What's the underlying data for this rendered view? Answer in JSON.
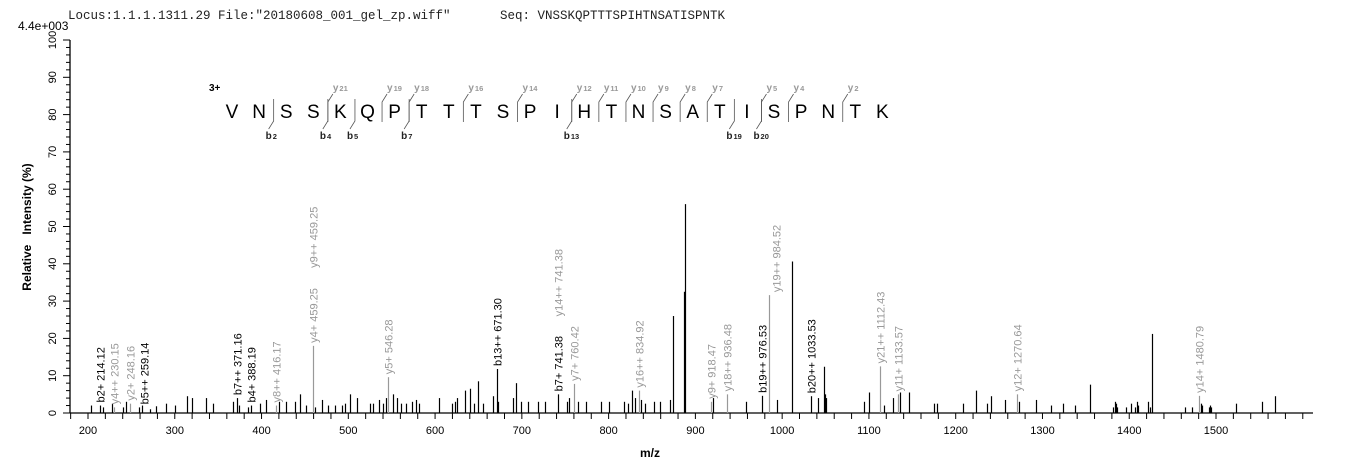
{
  "header": {
    "locus": "Locus:1.1.1.1311.29 File:\"20180608_001_gel_zp.wiff\"",
    "seq": "Seq: VNSSKQPTTTSPIHTNSATISPNTK",
    "scale_max": "4.4e+003"
  },
  "colors": {
    "b_ion": "#000000",
    "y_ion": "#999999",
    "unmatched": "#000000"
  },
  "sequence_annotation": {
    "charge": "3+",
    "residues": [
      "V",
      "N",
      "S",
      "S",
      "K",
      "Q",
      "P",
      "T",
      "T",
      "T",
      "S",
      "P",
      "I",
      "H",
      "T",
      "N",
      "S",
      "A",
      "T",
      "I",
      "S",
      "P",
      "N",
      "T",
      "K"
    ],
    "y_ions": [
      21,
      19,
      18,
      16,
      14,
      12,
      11,
      10,
      9,
      8,
      7,
      5,
      4,
      2
    ],
    "b_ions": [
      2,
      4,
      5,
      7,
      13,
      19,
      20
    ],
    "y_prefix": "y",
    "b_prefix": "b"
  },
  "chart_data": {
    "type": "bar",
    "title": "",
    "xlabel": "m/z",
    "ylabel": "Relative   Intensity (%)",
    "xlim": [
      179,
      1612
    ],
    "ylim": [
      0,
      100
    ],
    "x_ticks": [
      "200",
      "300",
      "400",
      "500",
      "600",
      "700",
      "800",
      "900",
      "1000",
      "1100",
      "1200",
      "1300",
      "1400",
      "1500"
    ],
    "y_ticks": [
      "0",
      "10",
      "20",
      "30",
      "40",
      "50",
      "60",
      "70",
      "80",
      "90",
      "100"
    ],
    "grid": false,
    "peaks": [
      {
        "mz": 203,
        "intensity": 2
      },
      {
        "mz": 214.12,
        "intensity": 2,
        "labels": [
          {
            "text": "b2+ 214.12",
            "ion": "b"
          }
        ]
      },
      {
        "mz": 217,
        "intensity": 1.5
      },
      {
        "mz": 228,
        "intensity": 2.5
      },
      {
        "mz": 230.15,
        "intensity": 1.5,
        "labels": [
          {
            "text": "y4++ 230.15",
            "ion": "y"
          }
        ]
      },
      {
        "mz": 240,
        "intensity": 1.5
      },
      {
        "mz": 244,
        "intensity": 3
      },
      {
        "mz": 248.16,
        "intensity": 2.5,
        "labels": [
          {
            "text": "y2+ 248.16",
            "ion": "y"
          }
        ]
      },
      {
        "mz": 259.14,
        "intensity": 1.5,
        "labels": [
          {
            "text": "b5++ 259.14",
            "ion": "b"
          }
        ]
      },
      {
        "mz": 262,
        "intensity": 2
      },
      {
        "mz": 272,
        "intensity": 1
      },
      {
        "mz": 278,
        "intensity": 1.8
      },
      {
        "mz": 290,
        "intensity": 2.5
      },
      {
        "mz": 300,
        "intensity": 2
      },
      {
        "mz": 314,
        "intensity": 4.5
      },
      {
        "mz": 320,
        "intensity": 4
      },
      {
        "mz": 336,
        "intensity": 4
      },
      {
        "mz": 344,
        "intensity": 2.5
      },
      {
        "mz": 367,
        "intensity": 3
      },
      {
        "mz": 371.16,
        "intensity": 4,
        "labels": [
          {
            "text": "b7++ 371.16",
            "ion": "b"
          }
        ]
      },
      {
        "mz": 374,
        "intensity": 2
      },
      {
        "mz": 384,
        "intensity": 1.5
      },
      {
        "mz": 388.19,
        "intensity": 2,
        "labels": [
          {
            "text": "b4+ 388.19",
            "ion": "b"
          }
        ]
      },
      {
        "mz": 398,
        "intensity": 2.5
      },
      {
        "mz": 405,
        "intensity": 3.5
      },
      {
        "mz": 416.17,
        "intensity": 2,
        "labels": [
          {
            "text": "y8++ 416.17",
            "ion": "y"
          }
        ]
      },
      {
        "mz": 420,
        "intensity": 3
      },
      {
        "mz": 428,
        "intensity": 3
      },
      {
        "mz": 438,
        "intensity": 3
      },
      {
        "mz": 444,
        "intensity": 5
      },
      {
        "mz": 451,
        "intensity": 2
      },
      {
        "mz": 459.25,
        "intensity": 18,
        "labels": [
          {
            "text": "y4+ 459.25",
            "ion": "y"
          },
          {
            "text": "y9++ 459.25",
            "ion": "y"
          }
        ]
      },
      {
        "mz": 462,
        "intensity": 1.5
      },
      {
        "mz": 470,
        "intensity": 3.5
      },
      {
        "mz": 477,
        "intensity": 2
      },
      {
        "mz": 485,
        "intensity": 2
      },
      {
        "mz": 493,
        "intensity": 2
      },
      {
        "mz": 496,
        "intensity": 2.5
      },
      {
        "mz": 502,
        "intensity": 5
      },
      {
        "mz": 510,
        "intensity": 4
      },
      {
        "mz": 525,
        "intensity": 2.5
      },
      {
        "mz": 528,
        "intensity": 2.5
      },
      {
        "mz": 535,
        "intensity": 3.5
      },
      {
        "mz": 540,
        "intensity": 2.5
      },
      {
        "mz": 543,
        "intensity": 4
      },
      {
        "mz": 546.28,
        "intensity": 9.6,
        "labels": [
          {
            "text": "y5+ 546.28",
            "ion": "y"
          }
        ]
      },
      {
        "mz": 552,
        "intensity": 5
      },
      {
        "mz": 556,
        "intensity": 4
      },
      {
        "mz": 561,
        "intensity": 2.5
      },
      {
        "mz": 566,
        "intensity": 2.5
      },
      {
        "mz": 573,
        "intensity": 3
      },
      {
        "mz": 578,
        "intensity": 3.5
      },
      {
        "mz": 582,
        "intensity": 2.5
      },
      {
        "mz": 605,
        "intensity": 4
      },
      {
        "mz": 619,
        "intensity": 2.5
      },
      {
        "mz": 623,
        "intensity": 3
      },
      {
        "mz": 625,
        "intensity": 4
      },
      {
        "mz": 634,
        "intensity": 6
      },
      {
        "mz": 640,
        "intensity": 6.5
      },
      {
        "mz": 645,
        "intensity": 2.5
      },
      {
        "mz": 650,
        "intensity": 8.5
      },
      {
        "mz": 655,
        "intensity": 2.5
      },
      {
        "mz": 667,
        "intensity": 4.5
      },
      {
        "mz": 671.3,
        "intensity": 11.8,
        "labels": [
          {
            "text": "b13++ 671.30",
            "ion": "b"
          }
        ]
      },
      {
        "mz": 673,
        "intensity": 3
      },
      {
        "mz": 690,
        "intensity": 4
      },
      {
        "mz": 693,
        "intensity": 8
      },
      {
        "mz": 699,
        "intensity": 3
      },
      {
        "mz": 707,
        "intensity": 3
      },
      {
        "mz": 719,
        "intensity": 3
      },
      {
        "mz": 727,
        "intensity": 3
      },
      {
        "mz": 741.38,
        "intensity": 5,
        "labels": [
          {
            "text": "b7+ 741.38",
            "ion": "b"
          },
          {
            "text": "y14++ 741.38",
            "ion": "y"
          }
        ]
      },
      {
        "mz": 752,
        "intensity": 3
      },
      {
        "mz": 754,
        "intensity": 4
      },
      {
        "mz": 760.42,
        "intensity": 7.8,
        "labels": [
          {
            "text": "y7+ 760.42",
            "ion": "y"
          }
        ]
      },
      {
        "mz": 765,
        "intensity": 3
      },
      {
        "mz": 774,
        "intensity": 3
      },
      {
        "mz": 791,
        "intensity": 3
      },
      {
        "mz": 800,
        "intensity": 3
      },
      {
        "mz": 818,
        "intensity": 3
      },
      {
        "mz": 822,
        "intensity": 2.5
      },
      {
        "mz": 827,
        "intensity": 6
      },
      {
        "mz": 830,
        "intensity": 4
      },
      {
        "mz": 834.92,
        "intensity": 6,
        "labels": [
          {
            "text": "y16++ 834.92",
            "ion": "y"
          }
        ]
      },
      {
        "mz": 837,
        "intensity": 3.5
      },
      {
        "mz": 842,
        "intensity": 2.5
      },
      {
        "mz": 852,
        "intensity": 3
      },
      {
        "mz": 859,
        "intensity": 3
      },
      {
        "mz": 871,
        "intensity": 3.5
      },
      {
        "mz": 873.8,
        "intensity": 26
      },
      {
        "mz": 887,
        "intensity": 32.5
      },
      {
        "mz": 888.4,
        "intensity": 56
      },
      {
        "mz": 918.47,
        "intensity": 3,
        "labels": [
          {
            "text": "y9+ 918.47",
            "ion": "y"
          }
        ]
      },
      {
        "mz": 920,
        "intensity": 4
      },
      {
        "mz": 936.48,
        "intensity": 5,
        "labels": [
          {
            "text": "y18++ 936.48",
            "ion": "y"
          }
        ]
      },
      {
        "mz": 958,
        "intensity": 3
      },
      {
        "mz": 976.53,
        "intensity": 4.6,
        "labels": [
          {
            "text": "b19++ 976.53",
            "ion": "b"
          }
        ]
      },
      {
        "mz": 984.52,
        "intensity": 31.6,
        "labels": [
          {
            "text": "y19++ 984.52",
            "ion": "y"
          }
        ]
      },
      {
        "mz": 994,
        "intensity": 3.5
      },
      {
        "mz": 1011.7,
        "intensity": 40.6
      },
      {
        "mz": 1033.53,
        "intensity": 4.5,
        "labels": [
          {
            "text": "b20++ 1033.53",
            "ion": "b"
          }
        ]
      },
      {
        "mz": 1041,
        "intensity": 4
      },
      {
        "mz": 1048.6,
        "intensity": 12.4
      },
      {
        "mz": 1049.6,
        "intensity": 5
      },
      {
        "mz": 1050.5,
        "intensity": 4
      },
      {
        "mz": 1094,
        "intensity": 3
      },
      {
        "mz": 1099.7,
        "intensity": 5.5
      },
      {
        "mz": 1112.43,
        "intensity": 12.5,
        "labels": [
          {
            "text": "y21++ 1112.43",
            "ion": "y"
          }
        ]
      },
      {
        "mz": 1117,
        "intensity": 2
      },
      {
        "mz": 1127.7,
        "intensity": 4
      },
      {
        "mz": 1133.57,
        "intensity": 5,
        "labels": [
          {
            "text": "y11+ 1133.57",
            "ion": "y"
          }
        ]
      },
      {
        "mz": 1135.5,
        "intensity": 5.5
      },
      {
        "mz": 1146,
        "intensity": 5.5
      },
      {
        "mz": 1174.8,
        "intensity": 2.5
      },
      {
        "mz": 1178.6,
        "intensity": 2.5
      },
      {
        "mz": 1208,
        "intensity": 2.5
      },
      {
        "mz": 1223,
        "intensity": 6
      },
      {
        "mz": 1236,
        "intensity": 2.5
      },
      {
        "mz": 1240.5,
        "intensity": 4.5
      },
      {
        "mz": 1256.6,
        "intensity": 3.5
      },
      {
        "mz": 1270.64,
        "intensity": 5,
        "labels": [
          {
            "text": "y12+ 1270.64",
            "ion": "y"
          }
        ]
      },
      {
        "mz": 1273.5,
        "intensity": 3
      },
      {
        "mz": 1292,
        "intensity": 3.5
      },
      {
        "mz": 1310,
        "intensity": 2
      },
      {
        "mz": 1324,
        "intensity": 2.5
      },
      {
        "mz": 1337.5,
        "intensity": 2
      },
      {
        "mz": 1355,
        "intensity": 7.6
      },
      {
        "mz": 1381.5,
        "intensity": 1.5
      },
      {
        "mz": 1383.9,
        "intensity": 3
      },
      {
        "mz": 1384.8,
        "intensity": 2.5
      },
      {
        "mz": 1386.4,
        "intensity": 1.5
      },
      {
        "mz": 1396,
        "intensity": 1.5
      },
      {
        "mz": 1402,
        "intensity": 2.5
      },
      {
        "mz": 1407,
        "intensity": 1.5
      },
      {
        "mz": 1408.7,
        "intensity": 3
      },
      {
        "mz": 1410,
        "intensity": 2
      },
      {
        "mz": 1422,
        "intensity": 3
      },
      {
        "mz": 1424,
        "intensity": 1.5
      },
      {
        "mz": 1426.6,
        "intensity": 21.2
      },
      {
        "mz": 1464.6,
        "intensity": 1.5
      },
      {
        "mz": 1472.7,
        "intensity": 1.5
      },
      {
        "mz": 1480.79,
        "intensity": 4.6,
        "labels": [
          {
            "text": "y14+ 1480.79",
            "ion": "y"
          }
        ]
      },
      {
        "mz": 1482.6,
        "intensity": 2.5
      },
      {
        "mz": 1484,
        "intensity": 2
      },
      {
        "mz": 1491.6,
        "intensity": 1.5
      },
      {
        "mz": 1493,
        "intensity": 2
      },
      {
        "mz": 1494.5,
        "intensity": 1.5
      },
      {
        "mz": 1523.4,
        "intensity": 2.5
      },
      {
        "mz": 1553.4,
        "intensity": 3
      },
      {
        "mz": 1568.3,
        "intensity": 4.5
      }
    ]
  }
}
